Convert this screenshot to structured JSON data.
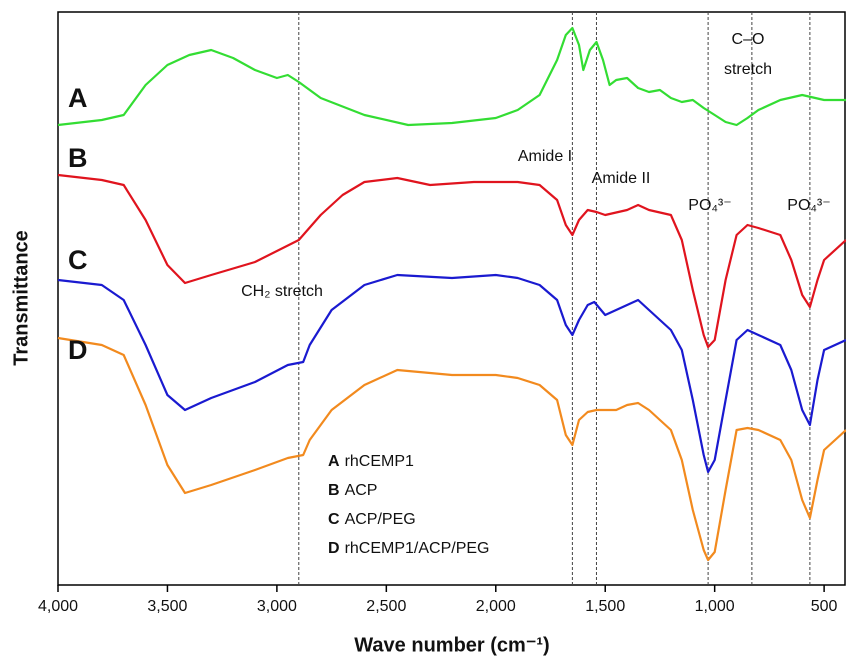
{
  "chart_data": {
    "type": "line",
    "xlabel": "Wave number (cm⁻¹)",
    "ylabel": "Transmittance",
    "xlim": [
      4000,
      400
    ],
    "ylim": [
      0,
      573
    ],
    "xticks": [
      {
        "value": 4000,
        "label": "4,000"
      },
      {
        "value": 3500,
        "label": "3,500"
      },
      {
        "value": 3000,
        "label": "3,000"
      },
      {
        "value": 2500,
        "label": "2,500"
      },
      {
        "value": 2000,
        "label": "2,000"
      },
      {
        "value": 1500,
        "label": "1,500"
      },
      {
        "value": 1000,
        "label": "1,000"
      },
      500
    ],
    "reference_lines": [
      2900,
      1650,
      1540,
      1030,
      830,
      565
    ],
    "annotations": [
      "CH₂ stretch",
      "Amide I",
      "Amide II",
      "PO₄³⁻",
      "C–O",
      "stretch",
      "PO₄³⁻"
    ],
    "series": [
      {
        "label": "A",
        "name": "rhCEMP1",
        "color": "#33dd33",
        "x": [
          4000,
          3800,
          3700,
          3600,
          3500,
          3400,
          3300,
          3200,
          3100,
          3000,
          2950,
          2900,
          2800,
          2600,
          2400,
          2200,
          2000,
          1900,
          1800,
          1720,
          1680,
          1650,
          1620,
          1600,
          1570,
          1540,
          1510,
          1480,
          1450,
          1400,
          1350,
          1300,
          1250,
          1200,
          1150,
          1100,
          1050,
          1000,
          950,
          900,
          850,
          800,
          700,
          600,
          500,
          400
        ],
        "values": [
          460,
          465,
          470,
          500,
          520,
          530,
          535,
          527,
          515,
          507,
          510,
          503,
          487,
          470,
          460,
          462,
          467,
          475,
          490,
          525,
          550,
          557,
          540,
          515,
          535,
          543,
          525,
          500,
          505,
          507,
          497,
          493,
          495,
          487,
          483,
          485,
          477,
          470,
          463,
          460,
          467,
          475,
          485,
          490,
          485,
          485
        ]
      },
      {
        "label": "B",
        "name": "ACP",
        "color": "#e0141e",
        "x": [
          4000,
          3800,
          3700,
          3600,
          3500,
          3420,
          3300,
          3100,
          2900,
          2800,
          2700,
          2600,
          2450,
          2300,
          2100,
          1900,
          1800,
          1720,
          1680,
          1650,
          1620,
          1580,
          1540,
          1500,
          1400,
          1350,
          1300,
          1200,
          1150,
          1100,
          1050,
          1030,
          1000,
          950,
          900,
          850,
          800,
          700,
          650,
          600,
          565,
          530,
          500,
          400
        ],
        "values": [
          410,
          405,
          400,
          365,
          320,
          302,
          310,
          323,
          345,
          370,
          390,
          403,
          407,
          400,
          403,
          403,
          400,
          385,
          360,
          350,
          365,
          375,
          373,
          370,
          375,
          380,
          375,
          370,
          345,
          295,
          250,
          238,
          245,
          305,
          350,
          360,
          357,
          350,
          325,
          290,
          278,
          305,
          325,
          345
        ]
      },
      {
        "label": "C",
        "name": "ACP/PEG",
        "color": "#1a1ad0",
        "x": [
          4000,
          3800,
          3700,
          3600,
          3500,
          3420,
          3300,
          3100,
          2950,
          2880,
          2850,
          2750,
          2600,
          2450,
          2200,
          2000,
          1900,
          1800,
          1720,
          1680,
          1650,
          1620,
          1580,
          1550,
          1500,
          1400,
          1350,
          1300,
          1200,
          1150,
          1100,
          1050,
          1030,
          1000,
          950,
          900,
          850,
          800,
          700,
          650,
          600,
          565,
          530,
          500,
          400
        ],
        "values": [
          305,
          300,
          285,
          240,
          190,
          175,
          187,
          203,
          220,
          223,
          240,
          275,
          300,
          310,
          307,
          310,
          307,
          300,
          285,
          260,
          250,
          265,
          280,
          283,
          270,
          280,
          285,
          275,
          255,
          235,
          185,
          130,
          113,
          125,
          185,
          245,
          255,
          250,
          240,
          215,
          175,
          160,
          205,
          235,
          245
        ]
      },
      {
        "label": "D",
        "name": "rhCEMP1/ACP/PEG",
        "color": "#f28a1e",
        "x": [
          4000,
          3800,
          3700,
          3600,
          3500,
          3420,
          3300,
          3100,
          2950,
          2880,
          2850,
          2750,
          2600,
          2450,
          2200,
          2000,
          1900,
          1800,
          1720,
          1680,
          1650,
          1620,
          1580,
          1540,
          1450,
          1400,
          1350,
          1300,
          1200,
          1150,
          1100,
          1050,
          1030,
          1000,
          950,
          900,
          850,
          800,
          700,
          650,
          600,
          565,
          530,
          500,
          400
        ],
        "values": [
          247,
          240,
          230,
          180,
          120,
          92,
          100,
          115,
          127,
          130,
          145,
          175,
          200,
          215,
          210,
          210,
          207,
          200,
          185,
          150,
          140,
          165,
          173,
          175,
          175,
          180,
          182,
          175,
          155,
          125,
          75,
          35,
          25,
          33,
          95,
          155,
          157,
          155,
          145,
          125,
          85,
          67,
          105,
          135,
          155
        ]
      }
    ]
  }
}
